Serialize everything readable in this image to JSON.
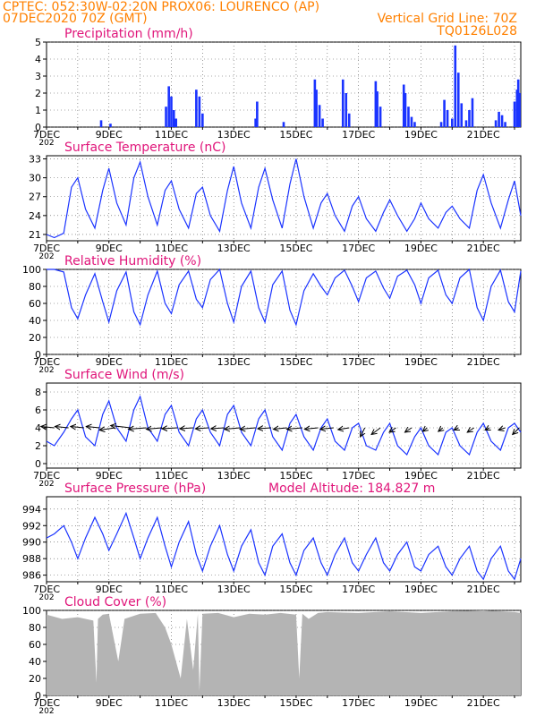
{
  "header": {
    "line1_left": "CPTEC:  052:30W-02:20N  PROX06: LOURENCO (AP)",
    "line2_left": "07DEC2020 70Z (GMT)",
    "line2_right": "Vertical Grid Line: 70Z",
    "line3_right": "TQ0126L028"
  },
  "colors": {
    "header": "#ff8000",
    "panel_title": "#e0157a",
    "series": "#1a33ff",
    "cloud": "#b4b4b4",
    "grid": "#555555"
  },
  "x_axis": {
    "ticks": [
      {
        "day": 0,
        "label": "7DEC"
      },
      {
        "day": 2,
        "label": "9DEC"
      },
      {
        "day": 4,
        "label": "11DEC"
      },
      {
        "day": 6,
        "label": "13DEC"
      },
      {
        "day": 8,
        "label": "15DEC"
      },
      {
        "day": 10,
        "label": "17DEC"
      },
      {
        "day": 12,
        "label": "19DEC"
      },
      {
        "day": 14,
        "label": "21DEC"
      }
    ],
    "year_label": "202",
    "range_days": [
      0,
      15.2
    ]
  },
  "chart_data": [
    {
      "id": "precip",
      "type": "bar",
      "title": "Precipitation (mm/h)",
      "ylim": [
        0,
        5
      ],
      "yticks": [
        0,
        1,
        2,
        3,
        4,
        5
      ],
      "x_unit": "days since 7DEC2020 00Z",
      "x": [
        1.75,
        2.05,
        3.83,
        3.92,
        4.0,
        4.08,
        4.15,
        4.8,
        4.9,
        5.0,
        6.7,
        6.75,
        7.6,
        8.6,
        8.65,
        8.75,
        8.85,
        9.5,
        9.6,
        9.7,
        10.55,
        10.6,
        10.7,
        11.45,
        11.5,
        11.6,
        11.7,
        11.8,
        12.65,
        12.75,
        12.85,
        13.0,
        13.1,
        13.2,
        13.3,
        13.45,
        13.55,
        13.65,
        14.4,
        14.5,
        14.6,
        14.7,
        15.0,
        15.08,
        15.12,
        15.16
      ],
      "values": [
        0.4,
        0.2,
        1.2,
        2.4,
        1.8,
        1.0,
        0.5,
        2.2,
        1.8,
        0.8,
        0.5,
        1.5,
        0.3,
        2.8,
        2.2,
        1.3,
        0.5,
        2.8,
        2.0,
        0.8,
        2.7,
        2.1,
        1.2,
        2.5,
        2.0,
        1.2,
        0.6,
        0.3,
        0.3,
        1.6,
        1.0,
        0.5,
        4.8,
        3.2,
        1.4,
        0.4,
        1.0,
        1.7,
        0.4,
        0.9,
        0.7,
        0.3,
        1.5,
        2.2,
        2.8,
        2.0
      ]
    },
    {
      "id": "temp",
      "type": "line",
      "title": "Surface Temperature (nC)",
      "ylim": [
        20,
        33.5
      ],
      "yticks": [
        21,
        24,
        27,
        30,
        33
      ],
      "x_unit": "days since 7DEC2020 00Z",
      "x": [
        0.0,
        0.25,
        0.55,
        0.8,
        1.0,
        1.25,
        1.55,
        1.8,
        2.0,
        2.25,
        2.55,
        2.8,
        3.0,
        3.25,
        3.55,
        3.8,
        4.0,
        4.25,
        4.55,
        4.8,
        5.0,
        5.25,
        5.55,
        5.8,
        6.0,
        6.25,
        6.55,
        6.8,
        7.0,
        7.25,
        7.55,
        7.8,
        8.0,
        8.25,
        8.55,
        8.8,
        9.0,
        9.25,
        9.55,
        9.8,
        10.0,
        10.25,
        10.55,
        10.8,
        11.0,
        11.25,
        11.55,
        11.8,
        12.0,
        12.25,
        12.55,
        12.8,
        13.0,
        13.25,
        13.55,
        13.8,
        14.0,
        14.25,
        14.55,
        14.8,
        15.0,
        15.2
      ],
      "values": [
        21.0,
        20.5,
        21.2,
        28.5,
        30.0,
        25.0,
        22.0,
        28.0,
        31.5,
        26.0,
        22.5,
        30.0,
        32.5,
        27.0,
        22.5,
        28.0,
        29.5,
        25.0,
        22.0,
        27.5,
        28.5,
        24.0,
        21.5,
        28.0,
        31.8,
        26.0,
        22.0,
        28.5,
        31.5,
        26.5,
        22.0,
        29.0,
        33.0,
        27.0,
        22.0,
        26.0,
        27.5,
        24.0,
        21.5,
        25.5,
        27.0,
        23.5,
        21.5,
        24.5,
        26.5,
        24.0,
        21.5,
        23.5,
        26.0,
        23.5,
        22.0,
        24.5,
        25.5,
        23.5,
        22.0,
        28.0,
        30.5,
        26.0,
        22.0,
        26.5,
        29.5,
        24.0
      ]
    },
    {
      "id": "rh",
      "type": "line",
      "title": "Relative Humidity (%)",
      "ylim": [
        0,
        100
      ],
      "yticks": [
        0,
        20,
        40,
        60,
        80,
        100
      ],
      "x_unit": "days since 7DEC2020 00Z",
      "x": [
        0.0,
        0.25,
        0.55,
        0.8,
        1.0,
        1.25,
        1.55,
        1.8,
        2.0,
        2.25,
        2.55,
        2.8,
        3.0,
        3.25,
        3.55,
        3.8,
        4.0,
        4.25,
        4.55,
        4.8,
        5.0,
        5.25,
        5.55,
        5.8,
        6.0,
        6.25,
        6.55,
        6.8,
        7.0,
        7.25,
        7.55,
        7.8,
        8.0,
        8.25,
        8.55,
        8.8,
        9.0,
        9.25,
        9.55,
        9.8,
        10.0,
        10.25,
        10.55,
        10.8,
        11.0,
        11.25,
        11.55,
        11.8,
        12.0,
        12.25,
        12.55,
        12.8,
        13.0,
        13.25,
        13.55,
        13.8,
        14.0,
        14.25,
        14.55,
        14.8,
        15.0,
        15.2
      ],
      "values": [
        100,
        100,
        97,
        55,
        42,
        70,
        95,
        62,
        38,
        75,
        97,
        50,
        35,
        70,
        98,
        60,
        48,
        82,
        98,
        65,
        55,
        88,
        100,
        60,
        38,
        80,
        98,
        55,
        38,
        82,
        98,
        52,
        35,
        75,
        95,
        80,
        70,
        90,
        99,
        80,
        62,
        90,
        98,
        78,
        66,
        92,
        99,
        82,
        60,
        90,
        99,
        70,
        60,
        90,
        100,
        55,
        40,
        80,
        99,
        62,
        50,
        98
      ]
    },
    {
      "id": "wind",
      "type": "line",
      "title": "Surface Wind (m/s)",
      "ylim": [
        -0.5,
        9
      ],
      "yticks": [
        0,
        2,
        4,
        6,
        8
      ],
      "x_unit": "days since 7DEC2020 00Z",
      "x": [
        0.0,
        0.25,
        0.55,
        0.8,
        1.0,
        1.25,
        1.55,
        1.8,
        2.0,
        2.25,
        2.55,
        2.8,
        3.0,
        3.25,
        3.55,
        3.8,
        4.0,
        4.25,
        4.55,
        4.8,
        5.0,
        5.25,
        5.55,
        5.8,
        6.0,
        6.25,
        6.55,
        6.8,
        7.0,
        7.25,
        7.55,
        7.8,
        8.0,
        8.25,
        8.55,
        8.8,
        9.0,
        9.25,
        9.55,
        9.8,
        10.0,
        10.25,
        10.55,
        10.8,
        11.0,
        11.25,
        11.55,
        11.8,
        12.0,
        12.25,
        12.55,
        12.8,
        13.0,
        13.25,
        13.55,
        13.8,
        14.0,
        14.25,
        14.55,
        14.8,
        15.0,
        15.2
      ],
      "values": [
        2.5,
        2.0,
        3.5,
        5.0,
        6.0,
        3.0,
        2.0,
        5.5,
        7.0,
        4.0,
        2.5,
        6.0,
        7.5,
        4.0,
        2.5,
        5.5,
        6.5,
        3.5,
        2.0,
        5.0,
        6.0,
        3.5,
        2.0,
        5.5,
        6.5,
        3.5,
        2.0,
        5.0,
        6.0,
        3.0,
        1.5,
        4.5,
        5.5,
        3.0,
        1.5,
        4.0,
        5.0,
        2.5,
        1.5,
        4.0,
        4.5,
        2.0,
        1.5,
        3.5,
        4.5,
        2.0,
        1.0,
        3.0,
        4.0,
        2.0,
        1.0,
        3.5,
        4.0,
        2.0,
        1.0,
        3.5,
        4.5,
        2.5,
        1.5,
        4.0,
        4.5,
        3.5
      ]
    },
    {
      "id": "pressure",
      "type": "line",
      "title": "Surface Pressure (hPa)",
      "annotation": "Model Altitude: 184.827  m",
      "ylim": [
        985.2,
        995.5
      ],
      "yticks": [
        986,
        988,
        990,
        992,
        994
      ],
      "x_unit": "days since 7DEC2020 00Z",
      "x": [
        0.0,
        0.25,
        0.55,
        0.8,
        1.0,
        1.25,
        1.55,
        1.8,
        2.0,
        2.25,
        2.55,
        2.8,
        3.0,
        3.25,
        3.55,
        3.8,
        4.0,
        4.25,
        4.55,
        4.8,
        5.0,
        5.25,
        5.55,
        5.8,
        6.0,
        6.25,
        6.55,
        6.8,
        7.0,
        7.25,
        7.55,
        7.8,
        8.0,
        8.25,
        8.55,
        8.8,
        9.0,
        9.25,
        9.55,
        9.8,
        10.0,
        10.25,
        10.55,
        10.8,
        11.0,
        11.25,
        11.55,
        11.8,
        12.0,
        12.25,
        12.55,
        12.8,
        13.0,
        13.25,
        13.55,
        13.8,
        14.0,
        14.25,
        14.55,
        14.8,
        15.0,
        15.2
      ],
      "values": [
        990.5,
        991.0,
        992.0,
        990.0,
        988.0,
        990.5,
        993.0,
        991.0,
        989.0,
        991.0,
        993.5,
        990.5,
        988.0,
        990.5,
        993.0,
        989.5,
        987.0,
        990.0,
        992.5,
        988.5,
        986.5,
        989.5,
        992.0,
        988.5,
        986.5,
        989.5,
        991.5,
        987.5,
        986.0,
        989.5,
        991.0,
        987.5,
        986.0,
        989.0,
        990.5,
        987.5,
        986.0,
        988.5,
        990.5,
        987.5,
        986.5,
        988.5,
        990.5,
        987.5,
        986.5,
        988.5,
        990.0,
        987.0,
        986.5,
        988.5,
        989.5,
        987.0,
        986.0,
        988.0,
        989.5,
        986.5,
        985.5,
        988.0,
        989.5,
        986.5,
        985.5,
        988.0
      ]
    },
    {
      "id": "cloud",
      "type": "area",
      "title": "Cloud Cover (%)",
      "ylim": [
        0,
        100
      ],
      "yticks": [
        0,
        20,
        40,
        60,
        80,
        100
      ],
      "x_unit": "days since 7DEC2020 00Z",
      "x": [
        0.0,
        0.5,
        1.0,
        1.5,
        1.6,
        1.65,
        1.8,
        2.0,
        2.3,
        2.5,
        3.0,
        3.5,
        3.8,
        4.0,
        4.3,
        4.5,
        4.7,
        4.85,
        4.9,
        5.0,
        5.5,
        6.0,
        6.5,
        7.0,
        7.5,
        8.0,
        8.1,
        8.2,
        8.4,
        8.7,
        9.0,
        10.0,
        11.0,
        12.0,
        13.0,
        14.0,
        15.0,
        15.2
      ],
      "values": [
        95,
        90,
        92,
        88,
        15,
        90,
        95,
        96,
        40,
        90,
        96,
        97,
        80,
        60,
        20,
        90,
        30,
        96,
        5,
        96,
        97,
        92,
        96,
        95,
        97,
        95,
        20,
        96,
        90,
        97,
        98,
        97,
        99,
        97,
        99,
        100,
        98,
        97
      ]
    },
    {
      "id": "wind_vectors",
      "type": "scatter",
      "x_unit": "days since 7DEC2020 00Z",
      "x": [
        0.25,
        0.7,
        1.2,
        1.7,
        2.2,
        2.7,
        3.2,
        3.7,
        4.2,
        4.7,
        5.2,
        5.7,
        6.2,
        6.7,
        7.2,
        7.7,
        8.2,
        8.7,
        9.2,
        9.7,
        10.2,
        10.7,
        11.2,
        11.7,
        12.2,
        12.7,
        13.2,
        13.7,
        14.2,
        14.7,
        15.15
      ],
      "u": [
        -3.0,
        -3.0,
        -3.0,
        -3.0,
        -3.5,
        -4.5,
        -4.0,
        -3.5,
        -3.5,
        -3.0,
        -3.0,
        -3.0,
        -3.5,
        -3.5,
        -3.0,
        -3.0,
        -3.5,
        -3.0,
        -3.0,
        -2.5,
        -1.0,
        -2.0,
        -1.5,
        -1.5,
        -1.0,
        -1.0,
        -1.0,
        -1.5,
        -1.0,
        -1.5,
        -1.5
      ],
      "v": [
        0.3,
        0.3,
        0.3,
        0.3,
        -0.5,
        0.5,
        -0.3,
        -0.3,
        -0.2,
        -0.2,
        -0.2,
        -0.2,
        -0.3,
        -0.3,
        -0.2,
        -0.3,
        -0.3,
        -0.3,
        -0.3,
        -0.4,
        -2.0,
        -1.5,
        -1.0,
        -1.0,
        -0.8,
        -0.8,
        -0.5,
        -1.0,
        -0.5,
        -0.5,
        -1.5
      ]
    }
  ]
}
